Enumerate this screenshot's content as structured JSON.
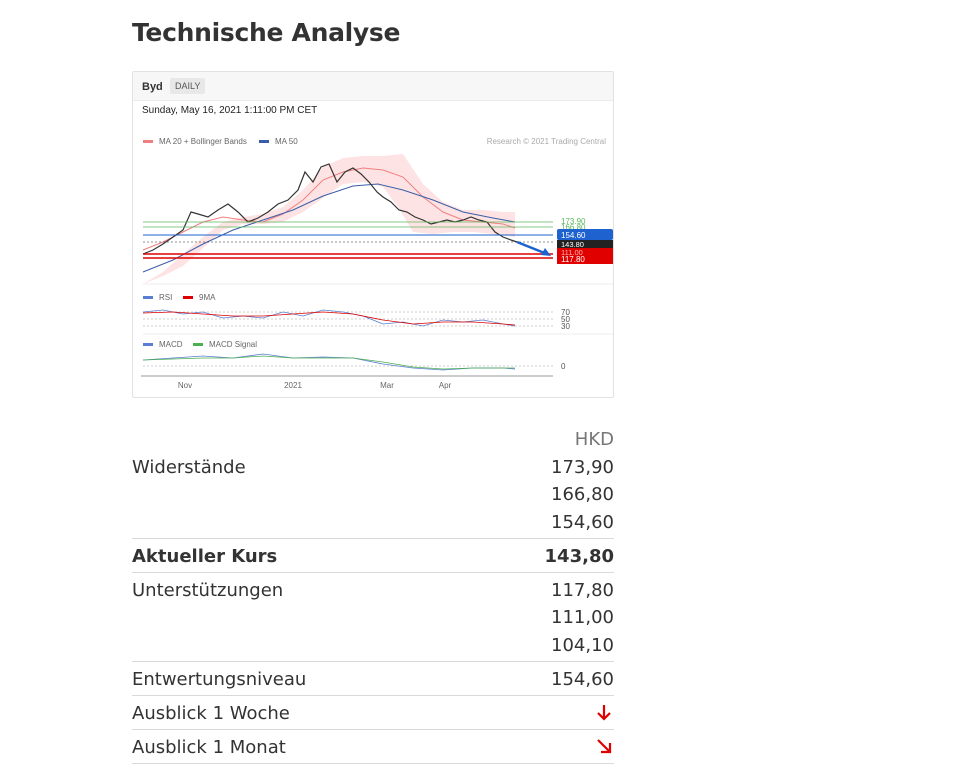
{
  "section": {
    "title": "Technische Analyse"
  },
  "chart": {
    "symbol": "Byd",
    "period_badge": "DAILY",
    "timestamp": "Sunday, May 16, 2021 1:11:00 PM CET",
    "legend_ma20": "MA 20 + Bollinger Bands",
    "legend_ma50": "MA 50",
    "copyright": "Research © 2021 Trading Central",
    "price_labels": [
      "173.90",
      "166.80",
      "154.60",
      "143.80",
      "111.00",
      "117.80"
    ],
    "rsi_label": "RSI",
    "rsi_ma_label": "9MA",
    "rsi_levels": [
      "70",
      "50",
      "30"
    ],
    "macd_label": "MACD",
    "macd_signal_label": "MACD Signal",
    "macd_zero": "0",
    "x_ticks": [
      "Nov",
      "2021",
      "Mar",
      "Apr"
    ],
    "colors": {
      "ma20": "#f08080",
      "ma50": "#3b5ea8",
      "resistance": "#5cb85c",
      "support": "#e00000",
      "current": "#222222",
      "pivot": "#1e62d0"
    }
  },
  "table": {
    "currency": "HKD",
    "resistances_label": "Widerstände",
    "resistances": [
      "173,90",
      "166,80",
      "154,60"
    ],
    "current_label": "Aktueller Kurs",
    "current_value": "143,80",
    "supports_label": "Unterstützungen",
    "supports": [
      "117,80",
      "111,00",
      "104,10"
    ],
    "pivot_label": "Entwertungsniveau",
    "pivot_value": "154,60",
    "outlook_week_label": "Ausblick 1 Woche",
    "outlook_week_icon": "arrow-down-icon",
    "outlook_month_label": "Ausblick 1 Monat",
    "outlook_month_icon": "arrow-down-right-icon",
    "arrow_color": "#e00000"
  }
}
